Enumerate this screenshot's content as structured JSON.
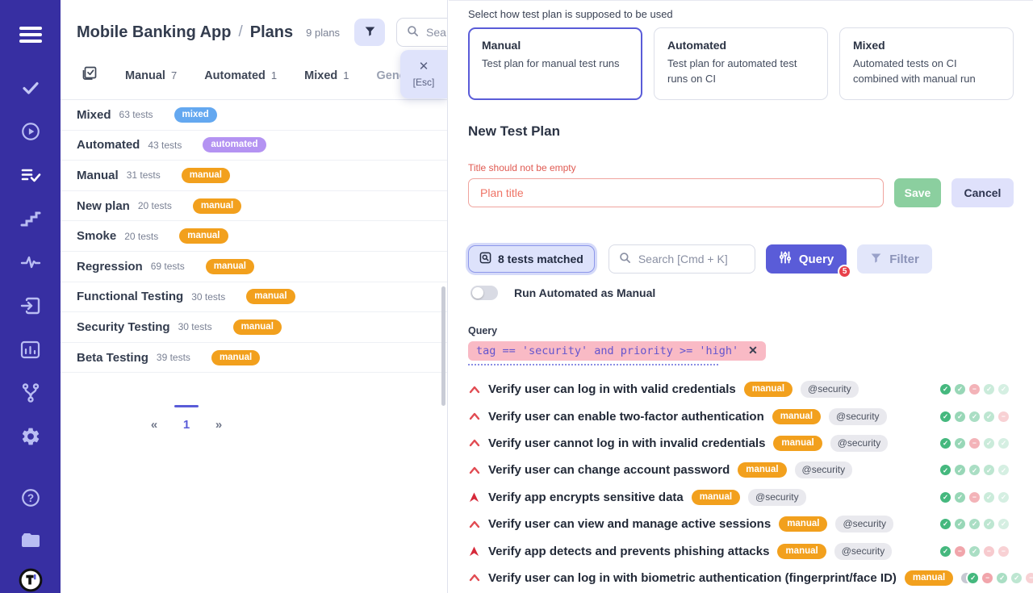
{
  "colors": {
    "sidebar_bg": "#372fa2",
    "accent": "#5a5cd8",
    "badge_mixed": "#64a8f0",
    "badge_automated": "#b493f2",
    "badge_manual": "#f2a01d",
    "error": "#e05a52",
    "save_green": "#8bcf9f",
    "pass_dot": "#45b87e",
    "fail_dot": "#e96a74",
    "query_highlight": "#f9bac5",
    "query_text": "#6455ce",
    "notif_red": "#e8404a"
  },
  "sidebar": {
    "items": [
      "menu-icon",
      "tests-check-icon",
      "runs-play-icon",
      "plans-list-check-icon",
      "milestones-steps-icon",
      "activity-pulse-icon",
      "import-signin-icon",
      "analytics-chart-icon",
      "branches-git-icon",
      "settings-gear-icon",
      "help-icon",
      "projects-folder-icon",
      "app-logo"
    ]
  },
  "left_panel": {
    "title": "Mobile Banking App",
    "slash": "/",
    "subtitle": "Plans",
    "count_label": "9 plans",
    "search_placeholder": "Search",
    "esc_popup": {
      "close": "✕",
      "label": "[Esc]"
    },
    "tabs": [
      {
        "label": "Manual",
        "count": "7",
        "muted": false
      },
      {
        "label": "Automated",
        "count": "1",
        "muted": false
      },
      {
        "label": "Mixed",
        "count": "1",
        "muted": false
      },
      {
        "label": "Generated",
        "count": "",
        "muted": true
      }
    ],
    "plans": [
      {
        "name": "Mixed",
        "tests": "63 tests",
        "badge": "mixed",
        "badge_type": "mixed"
      },
      {
        "name": "Automated",
        "tests": "43 tests",
        "badge": "automated",
        "badge_type": "automated"
      },
      {
        "name": "Manual",
        "tests": "31 tests",
        "badge": "manual",
        "badge_type": "manual"
      },
      {
        "name": "New plan",
        "tests": "20 tests",
        "badge": "manual",
        "badge_type": "manual"
      },
      {
        "name": "Smoke",
        "tests": "20 tests",
        "badge": "manual",
        "badge_type": "manual"
      },
      {
        "name": "Regression",
        "tests": "69 tests",
        "badge": "manual",
        "badge_type": "manual"
      },
      {
        "name": "Functional Testing",
        "tests": "30 tests",
        "badge": "manual",
        "badge_type": "manual"
      },
      {
        "name": "Security Testing",
        "tests": "30 tests",
        "badge": "manual",
        "badge_type": "manual"
      },
      {
        "name": "Beta Testing",
        "tests": "39 tests",
        "badge": "manual",
        "badge_type": "manual"
      }
    ],
    "pagination": {
      "prev": "«",
      "page": "1",
      "next": "»"
    }
  },
  "right_panel": {
    "mode_label": "Select how test plan is supposed to be used",
    "modes": [
      {
        "title": "Manual",
        "desc": "Test plan for manual test runs",
        "selected": true
      },
      {
        "title": "Automated",
        "desc": "Test plan for automated test runs on CI",
        "selected": false
      },
      {
        "title": "Mixed",
        "desc": "Automated tests on CI combined with manual run",
        "selected": false
      }
    ],
    "form": {
      "heading": "New Test Plan",
      "error": "Title should not be empty",
      "input_placeholder": "Plan title",
      "input_value": "",
      "save": "Save",
      "cancel": "Cancel"
    },
    "toolbar": {
      "matched": "8 tests matched",
      "search_placeholder": "Search [Cmd + K]",
      "query": "Query",
      "query_badge": "5",
      "filter": "Filter",
      "toggle_label": "Run Automated as Manual",
      "toggle_on": false
    },
    "query": {
      "label": "Query",
      "code": "tag == 'security' and priority >= 'high'",
      "close": "✕"
    },
    "tests": [
      {
        "priority": "high",
        "title": "Verify user can log in with valid credentials",
        "badge": "manual",
        "tag": "@security",
        "half": false,
        "dots": [
          {
            "s": "pass",
            "o": 1
          },
          {
            "s": "pass",
            "o": 0.55
          },
          {
            "s": "fail",
            "o": 0.5
          },
          {
            "s": "pass",
            "o": 0.28
          },
          {
            "s": "pass",
            "o": 0.22
          }
        ]
      },
      {
        "priority": "high",
        "title": "Verify user can enable two-factor authentication",
        "badge": "manual",
        "tag": "@security",
        "half": false,
        "dots": [
          {
            "s": "pass",
            "o": 1
          },
          {
            "s": "pass",
            "o": 0.55
          },
          {
            "s": "pass",
            "o": 0.45
          },
          {
            "s": "pass",
            "o": 0.35
          },
          {
            "s": "fail",
            "o": 0.3
          }
        ]
      },
      {
        "priority": "high",
        "title": "Verify user cannot log in with invalid credentials",
        "badge": "manual",
        "tag": "@security",
        "half": false,
        "dots": [
          {
            "s": "pass",
            "o": 1
          },
          {
            "s": "pass",
            "o": 0.55
          },
          {
            "s": "fail",
            "o": 0.5
          },
          {
            "s": "pass",
            "o": 0.28
          },
          {
            "s": "pass",
            "o": 0.22
          }
        ]
      },
      {
        "priority": "high",
        "title": "Verify user can change account password",
        "badge": "manual",
        "tag": "@security",
        "half": false,
        "dots": [
          {
            "s": "pass",
            "o": 1
          },
          {
            "s": "pass",
            "o": 0.55
          },
          {
            "s": "pass",
            "o": 0.45
          },
          {
            "s": "pass",
            "o": 0.35
          },
          {
            "s": "pass",
            "o": 0.22
          }
        ]
      },
      {
        "priority": "critical",
        "title": "Verify app encrypts sensitive data",
        "badge": "manual",
        "tag": "@security",
        "half": false,
        "dots": [
          {
            "s": "pass",
            "o": 1
          },
          {
            "s": "pass",
            "o": 0.55
          },
          {
            "s": "fail",
            "o": 0.5
          },
          {
            "s": "pass",
            "o": 0.28
          },
          {
            "s": "pass",
            "o": 0.22
          }
        ]
      },
      {
        "priority": "high",
        "title": "Verify user can view and manage active sessions",
        "badge": "manual",
        "tag": "@security",
        "half": false,
        "dots": [
          {
            "s": "pass",
            "o": 1
          },
          {
            "s": "pass",
            "o": 0.55
          },
          {
            "s": "pass",
            "o": 0.45
          },
          {
            "s": "pass",
            "o": 0.35
          },
          {
            "s": "pass",
            "o": 0.22
          }
        ]
      },
      {
        "priority": "critical",
        "title": "Verify app detects and prevents phishing attacks",
        "badge": "manual",
        "tag": "@security",
        "half": false,
        "dots": [
          {
            "s": "pass",
            "o": 1
          },
          {
            "s": "fail",
            "o": 0.6
          },
          {
            "s": "pass",
            "o": 0.45
          },
          {
            "s": "fail",
            "o": 0.35
          },
          {
            "s": "fail",
            "o": 0.3
          }
        ]
      },
      {
        "priority": "high",
        "title": "Verify user can log in with biometric authentication (fingerprint/face ID)",
        "badge": "manual",
        "tag": "",
        "half": true,
        "dots": [
          {
            "s": "pass",
            "o": 1
          },
          {
            "s": "fail",
            "o": 0.6
          },
          {
            "s": "pass",
            "o": 0.45
          },
          {
            "s": "pass",
            "o": 0.35
          },
          {
            "s": "fail",
            "o": 0.3
          }
        ]
      }
    ]
  }
}
